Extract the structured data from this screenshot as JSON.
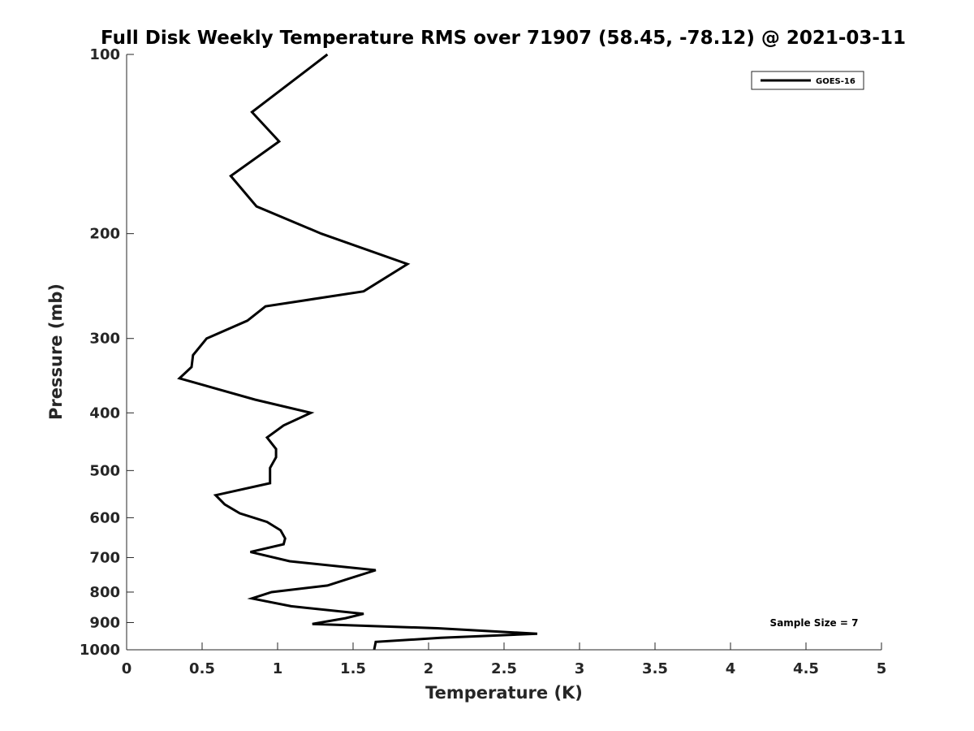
{
  "chart_data": {
    "type": "line",
    "title": "Full Disk Weekly Temperature RMS over 71907 (58.45, -78.12) @ 2021-03-11",
    "xlabel": "Temperature (K)",
    "ylabel": "Pressure (mb)",
    "xlim": [
      0,
      5
    ],
    "ylim": [
      1000,
      100
    ],
    "yscale": "log",
    "y_reversed": true,
    "x_ticks": [
      "0",
      "0.5",
      "1",
      "1.5",
      "2",
      "2.5",
      "3",
      "3.5",
      "4",
      "4.5",
      "5"
    ],
    "y_ticks": [
      "100",
      "200",
      "300",
      "400",
      "500",
      "600",
      "700",
      "800",
      "900",
      "1000"
    ],
    "grid": false,
    "legend": {
      "position": "top-right",
      "entries": [
        "GOES-16"
      ]
    },
    "annotation": "Sample Size = 7",
    "series": [
      {
        "name": "GOES-16",
        "color": "#000000",
        "points": [
          [
            1.33,
            100
          ],
          [
            0.83,
            125
          ],
          [
            1.01,
            140
          ],
          [
            0.69,
            160
          ],
          [
            0.86,
            180
          ],
          [
            1.29,
            200
          ],
          [
            1.86,
            225
          ],
          [
            1.57,
            250
          ],
          [
            0.92,
            265
          ],
          [
            0.8,
            280
          ],
          [
            0.53,
            300
          ],
          [
            0.44,
            320
          ],
          [
            0.43,
            335
          ],
          [
            0.35,
            350
          ],
          [
            0.85,
            380
          ],
          [
            1.22,
            400
          ],
          [
            1.04,
            420
          ],
          [
            0.93,
            440
          ],
          [
            0.99,
            460
          ],
          [
            0.99,
            475
          ],
          [
            0.95,
            495
          ],
          [
            0.95,
            510
          ],
          [
            0.95,
            525
          ],
          [
            0.59,
            550
          ],
          [
            0.65,
            570
          ],
          [
            0.75,
            590
          ],
          [
            0.93,
            610
          ],
          [
            1.02,
            630
          ],
          [
            1.05,
            650
          ],
          [
            1.04,
            665
          ],
          [
            0.82,
            685
          ],
          [
            1.08,
            710
          ],
          [
            1.65,
            735
          ],
          [
            1.47,
            760
          ],
          [
            1.33,
            780
          ],
          [
            0.96,
            800
          ],
          [
            0.83,
            820
          ],
          [
            1.09,
            845
          ],
          [
            1.57,
            870
          ],
          [
            1.45,
            885
          ],
          [
            1.23,
            905
          ],
          [
            2.06,
            920
          ],
          [
            2.72,
            940
          ],
          [
            2.08,
            955
          ],
          [
            1.65,
            970
          ],
          [
            1.64,
            1000
          ]
        ]
      }
    ]
  }
}
